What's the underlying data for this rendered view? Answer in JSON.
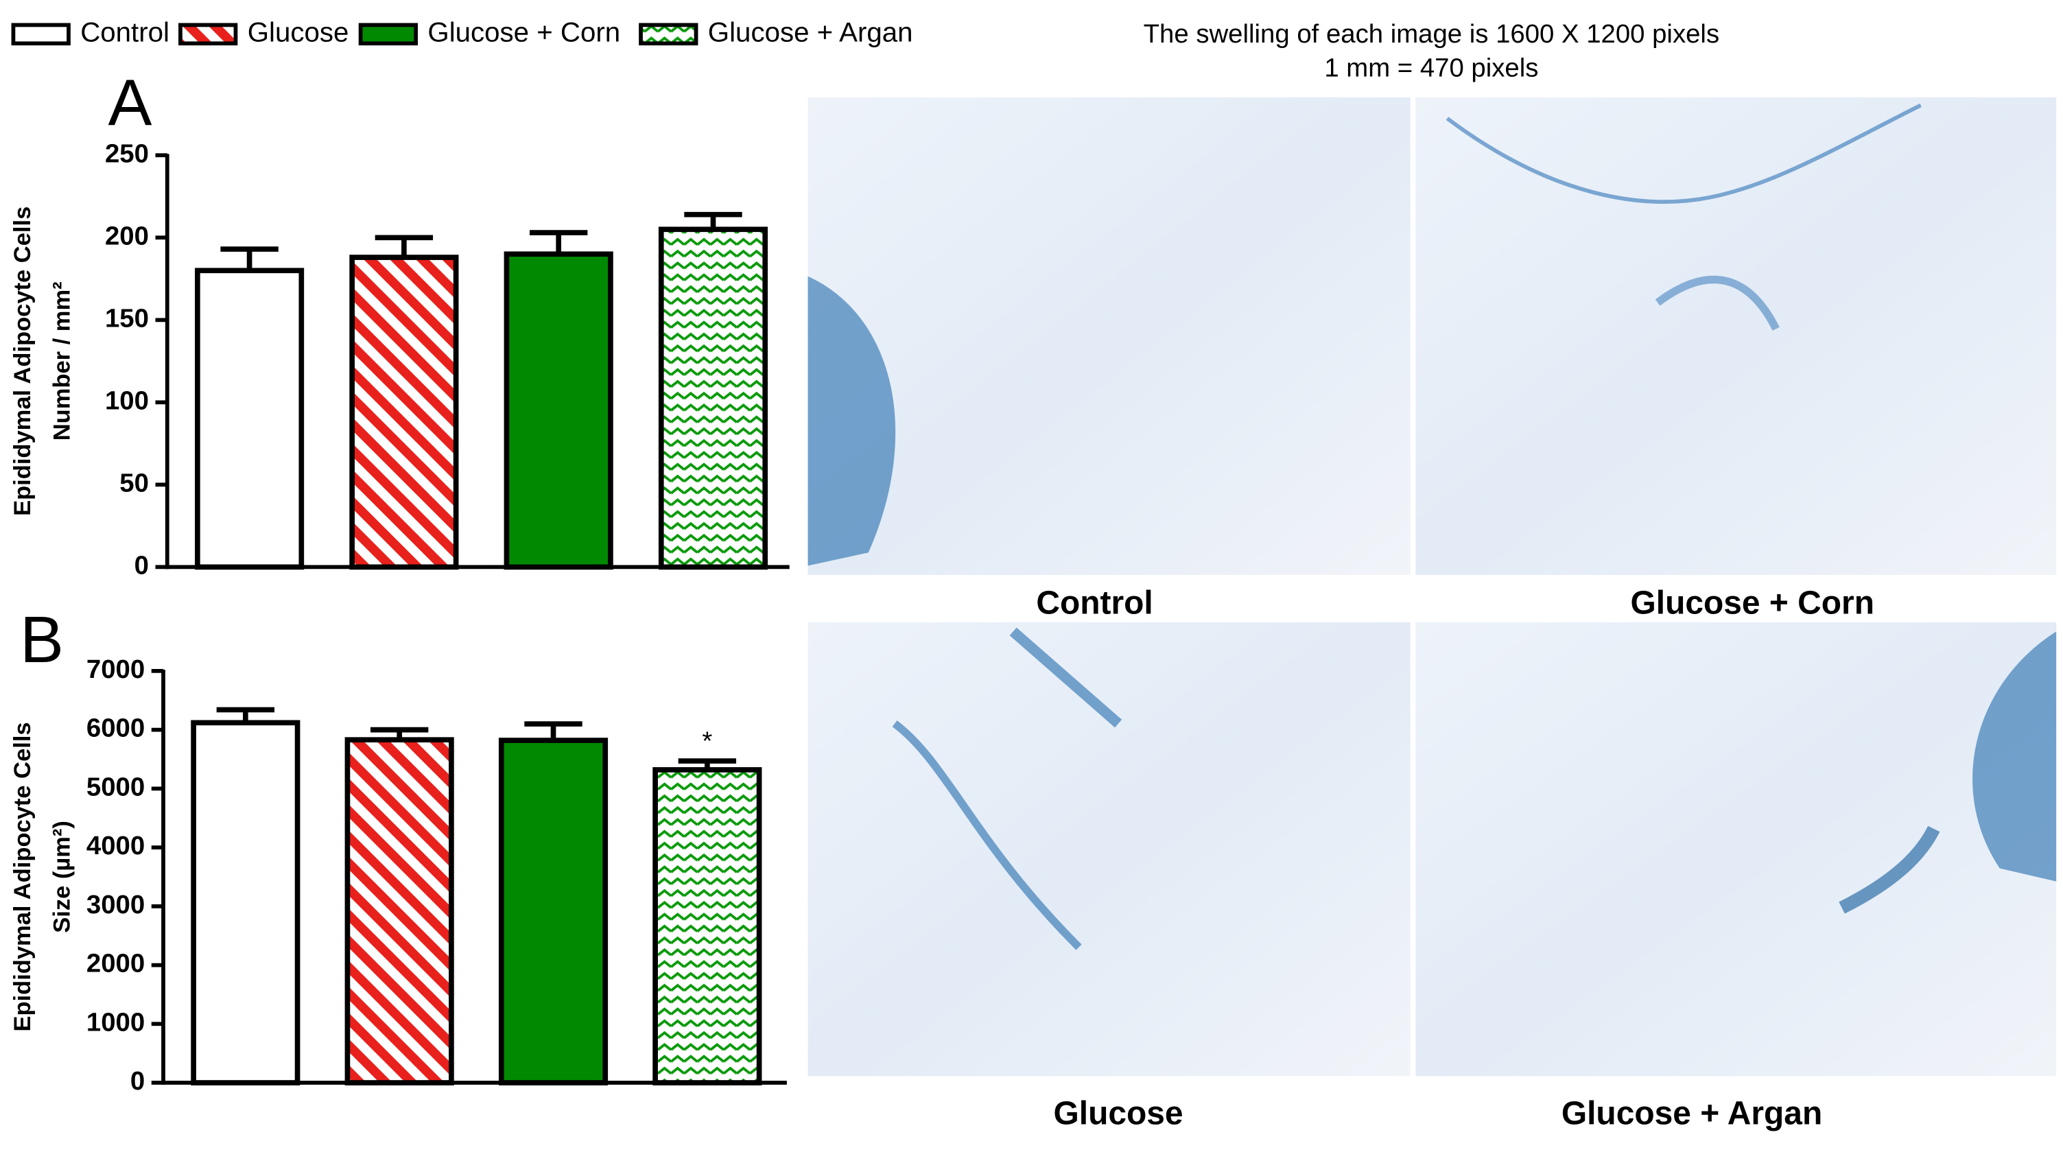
{
  "legend": [
    {
      "name": "Control",
      "color": "#ffffff",
      "pattern": "solid"
    },
    {
      "name": "Glucose",
      "color": "#e8211c",
      "pattern": "stripes"
    },
    {
      "name": "Glucose + Corn",
      "color": "#018a01",
      "pattern": "solid"
    },
    {
      "name": "Glucose + Argan",
      "color": "#0a9a0a",
      "pattern": "zigzag"
    }
  ],
  "note": [
    "The swelling of each image is 1600 X 1200 pixels",
    "1 mm = 470 pixels"
  ],
  "micrographs": [
    "Control",
    "Glucose + Corn",
    "Glucose",
    "Glucose + Argan"
  ],
  "chart_data": [
    {
      "type": "bar",
      "panel": "A",
      "ylabel": "Epididymal Adipocyte Cells",
      "ylabel2": "Number / mm²",
      "categories": [
        null,
        null,
        null,
        null
      ],
      "values": [
        180,
        188,
        190,
        205
      ],
      "errors": [
        13,
        12,
        13,
        9
      ],
      "ylim": [
        0,
        250
      ],
      "yticks": [
        0,
        50,
        100,
        150,
        200,
        250
      ]
    },
    {
      "type": "bar",
      "panel": "B",
      "ylabel": "Epididymal Adipocyte Cells",
      "ylabel2": "Size (µm²)",
      "categories": [
        null,
        null,
        null,
        null
      ],
      "values": [
        6120,
        5830,
        5820,
        5320
      ],
      "errors": [
        220,
        170,
        280,
        150
      ],
      "annotations": [
        null,
        null,
        null,
        "*"
      ],
      "ylim": [
        0,
        7000
      ],
      "yticks": [
        0,
        1000,
        2000,
        3000,
        4000,
        5000,
        6000,
        7000
      ]
    }
  ]
}
